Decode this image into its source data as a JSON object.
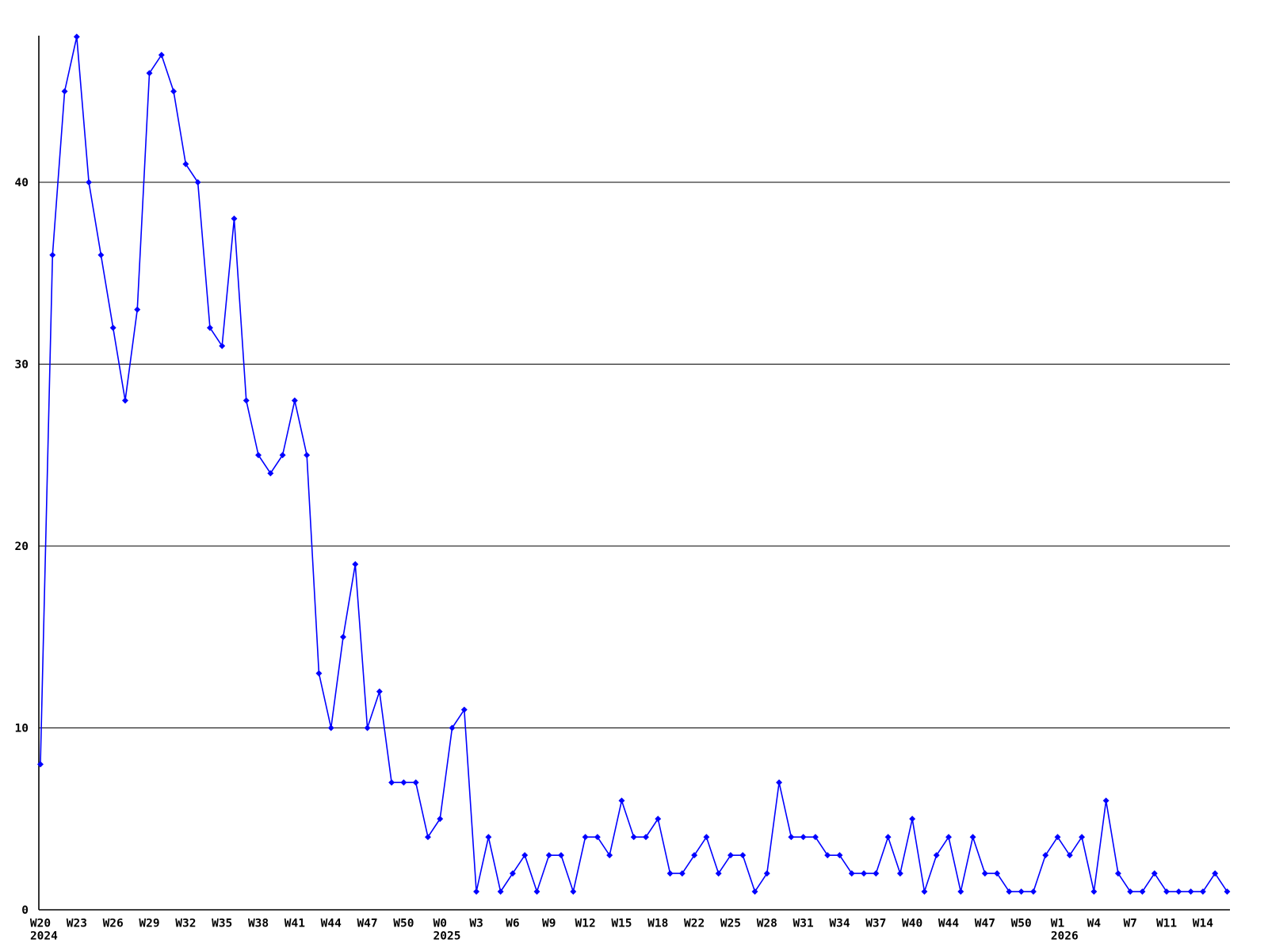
{
  "chart_data": {
    "type": "line",
    "title": "",
    "xlabel": "",
    "ylabel": "",
    "legend": "none",
    "grid": "horizontal-only",
    "background_color": "#ffffff",
    "axis_color": "#000000",
    "gridline_color": "#000000",
    "line_color": "#0000ff",
    "marker": "diamond",
    "y_ticks": [
      0,
      10,
      20,
      30,
      40
    ],
    "ylim": [
      0,
      48.2
    ],
    "x_tick_every_n_points": 3,
    "x_tick_labels": [
      "W20",
      "W23",
      "W26",
      "W29",
      "W32",
      "W35",
      "W38",
      "W41",
      "W44",
      "W47",
      "W50",
      "W0",
      "W3",
      "W6",
      "W9",
      "W12",
      "W15",
      "W18",
      "W22",
      "W25",
      "W28",
      "W31",
      "W34",
      "W37",
      "W40",
      "W44",
      "W47",
      "W50",
      "W1",
      "W4",
      "W7",
      "W11",
      "W14"
    ],
    "year_labels": [
      {
        "tick_index": 0,
        "text": "2024"
      },
      {
        "tick_index": 11,
        "text": "2025"
      },
      {
        "tick_index": 28,
        "text": "2026"
      }
    ],
    "values": [
      8,
      36,
      45,
      48,
      40,
      36,
      32,
      28,
      33,
      46,
      47,
      45,
      41,
      40,
      32,
      31,
      38,
      28,
      25,
      24,
      25,
      28,
      25,
      13,
      10,
      15,
      19,
      10,
      12,
      7,
      7,
      7,
      4,
      5,
      10,
      11,
      1,
      4,
      1,
      2,
      3,
      1,
      3,
      3,
      1,
      4,
      4,
      3,
      6,
      4,
      4,
      5,
      2,
      2,
      3,
      4,
      2,
      3,
      3,
      1,
      2,
      7,
      4,
      4,
      4,
      3,
      3,
      2,
      2,
      2,
      4,
      2,
      5,
      1,
      3,
      4,
      1,
      4,
      2,
      2,
      1,
      1,
      1,
      3,
      4,
      3,
      4,
      1,
      6,
      2,
      1,
      1,
      2,
      1,
      1,
      1,
      1,
      2,
      1
    ]
  }
}
